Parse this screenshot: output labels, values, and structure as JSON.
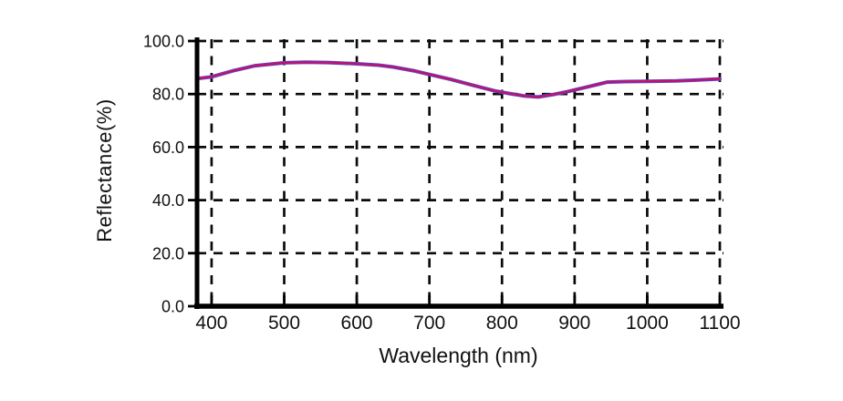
{
  "figure": {
    "background": "#ffffff",
    "axis_color": "#000000",
    "grid_color": "#0b0b0b",
    "text_color": "#111111"
  },
  "chart_data": {
    "type": "line",
    "title": "",
    "xlabel": "Wavelength (nm)",
    "ylabel": "Reflectance(%)",
    "xlim": [
      380,
      1100
    ],
    "ylim": [
      0,
      100
    ],
    "x_ticks": [
      400,
      500,
      600,
      700,
      800,
      900,
      1000,
      1100
    ],
    "x_tick_labels": [
      "400",
      "500",
      "600",
      "700",
      "800",
      "900",
      "1000",
      "1100"
    ],
    "y_ticks": [
      0,
      20,
      40,
      60,
      80,
      100
    ],
    "y_tick_labels": [
      "0.0",
      "20.0",
      "40.0",
      "60.0",
      "80.0",
      "100.0"
    ],
    "grid": {
      "style": "dashed",
      "on": true
    },
    "legend": "none",
    "series": [
      {
        "name": "series-blue",
        "color": "#4650dc",
        "x": [
          380,
          400,
          430,
          460,
          500,
          530,
          560,
          600,
          630,
          650,
          680,
          700,
          730,
          760,
          790,
          810,
          830,
          850,
          870,
          890,
          910,
          930,
          945,
          970,
          1000,
          1040,
          1070,
          1100
        ],
        "values": [
          85.8,
          86.5,
          88.8,
          90.7,
          91.8,
          92.0,
          91.9,
          91.4,
          90.9,
          90.2,
          88.7,
          87.4,
          85.5,
          83.3,
          81.2,
          80.2,
          79.3,
          78.9,
          79.8,
          80.9,
          82.2,
          83.5,
          84.5,
          84.7,
          84.8,
          85.0,
          85.3,
          85.7
        ]
      },
      {
        "name": "series-magenta",
        "color": "#be146e",
        "x": [
          380,
          400,
          430,
          460,
          500,
          530,
          560,
          600,
          630,
          650,
          680,
          700,
          730,
          760,
          790,
          810,
          830,
          850,
          870,
          890,
          910,
          930,
          945,
          970,
          1000,
          1040,
          1070,
          1100
        ],
        "values": [
          85.8,
          86.5,
          88.8,
          90.7,
          91.8,
          92.0,
          91.9,
          91.4,
          90.9,
          90.2,
          88.7,
          87.4,
          85.5,
          83.3,
          81.2,
          80.2,
          79.3,
          78.9,
          79.8,
          80.9,
          82.2,
          83.5,
          84.5,
          84.7,
          84.8,
          85.0,
          85.3,
          85.7
        ]
      }
    ]
  }
}
